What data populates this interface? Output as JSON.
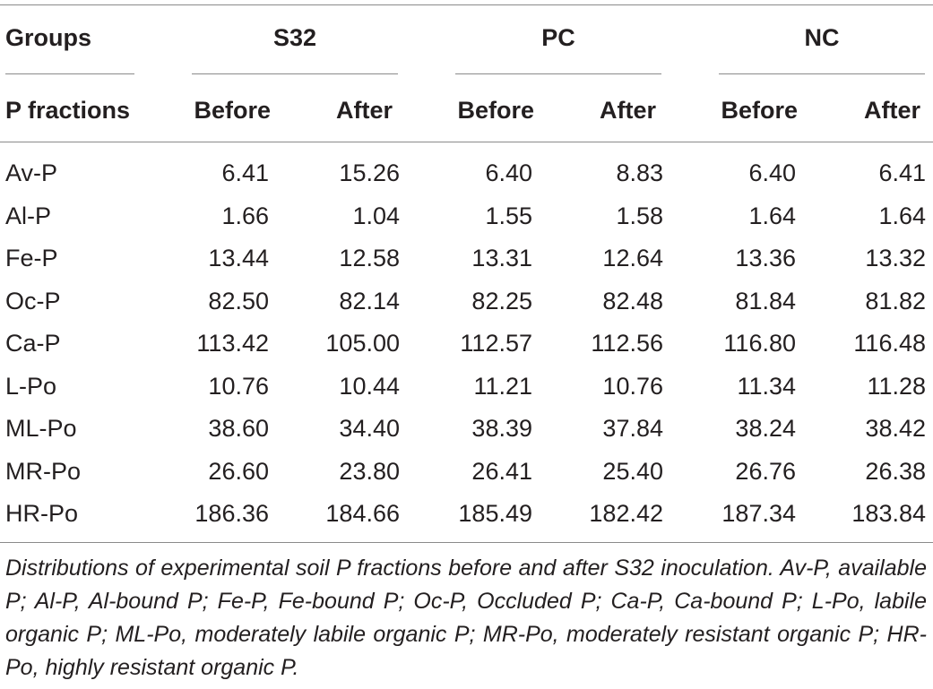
{
  "table": {
    "header": {
      "groups_label": "Groups",
      "fractions_label": "P fractions",
      "groups": [
        {
          "name": "S32",
          "before": "Before",
          "after": "After"
        },
        {
          "name": "PC",
          "before": "Before",
          "after": "After"
        },
        {
          "name": "NC",
          "before": "Before",
          "after": "After"
        }
      ]
    },
    "rows": [
      {
        "label": "Av-P",
        "values": [
          "6.41",
          "15.26",
          "6.40",
          "8.83",
          "6.40",
          "6.41"
        ]
      },
      {
        "label": "Al-P",
        "values": [
          "1.66",
          "1.04",
          "1.55",
          "1.58",
          "1.64",
          "1.64"
        ]
      },
      {
        "label": "Fe-P",
        "values": [
          "13.44",
          "12.58",
          "13.31",
          "12.64",
          "13.36",
          "13.32"
        ]
      },
      {
        "label": "Oc-P",
        "values": [
          "82.50",
          "82.14",
          "82.25",
          "82.48",
          "81.84",
          "81.82"
        ]
      },
      {
        "label": "Ca-P",
        "values": [
          "113.42",
          "105.00",
          "112.57",
          "112.56",
          "116.80",
          "116.48"
        ]
      },
      {
        "label": "L-Po",
        "values": [
          "10.76",
          "10.44",
          "11.21",
          "10.76",
          "11.34",
          "11.28"
        ]
      },
      {
        "label": "ML-Po",
        "values": [
          "38.60",
          "34.40",
          "38.39",
          "37.84",
          "38.24",
          "38.42"
        ]
      },
      {
        "label": "MR-Po",
        "values": [
          "26.60",
          "23.80",
          "26.41",
          "25.40",
          "26.76",
          "26.38"
        ]
      },
      {
        "label": "HR-Po",
        "values": [
          "186.36",
          "184.66",
          "185.49",
          "182.42",
          "187.34",
          "183.84"
        ]
      }
    ],
    "caption": "Distributions of experimental soil P fractions before and after S32 inoculation. Av-P, available P; Al-P, Al-bound P; Fe-P, Fe-bound P; Oc-P, Occluded P; Ca-P, Ca-bound P; L-Po, labile organic P; ML-Po, moderately labile organic P; MR-Po, moderately resistant organic P; HR-Po, highly resistant organic P."
  }
}
